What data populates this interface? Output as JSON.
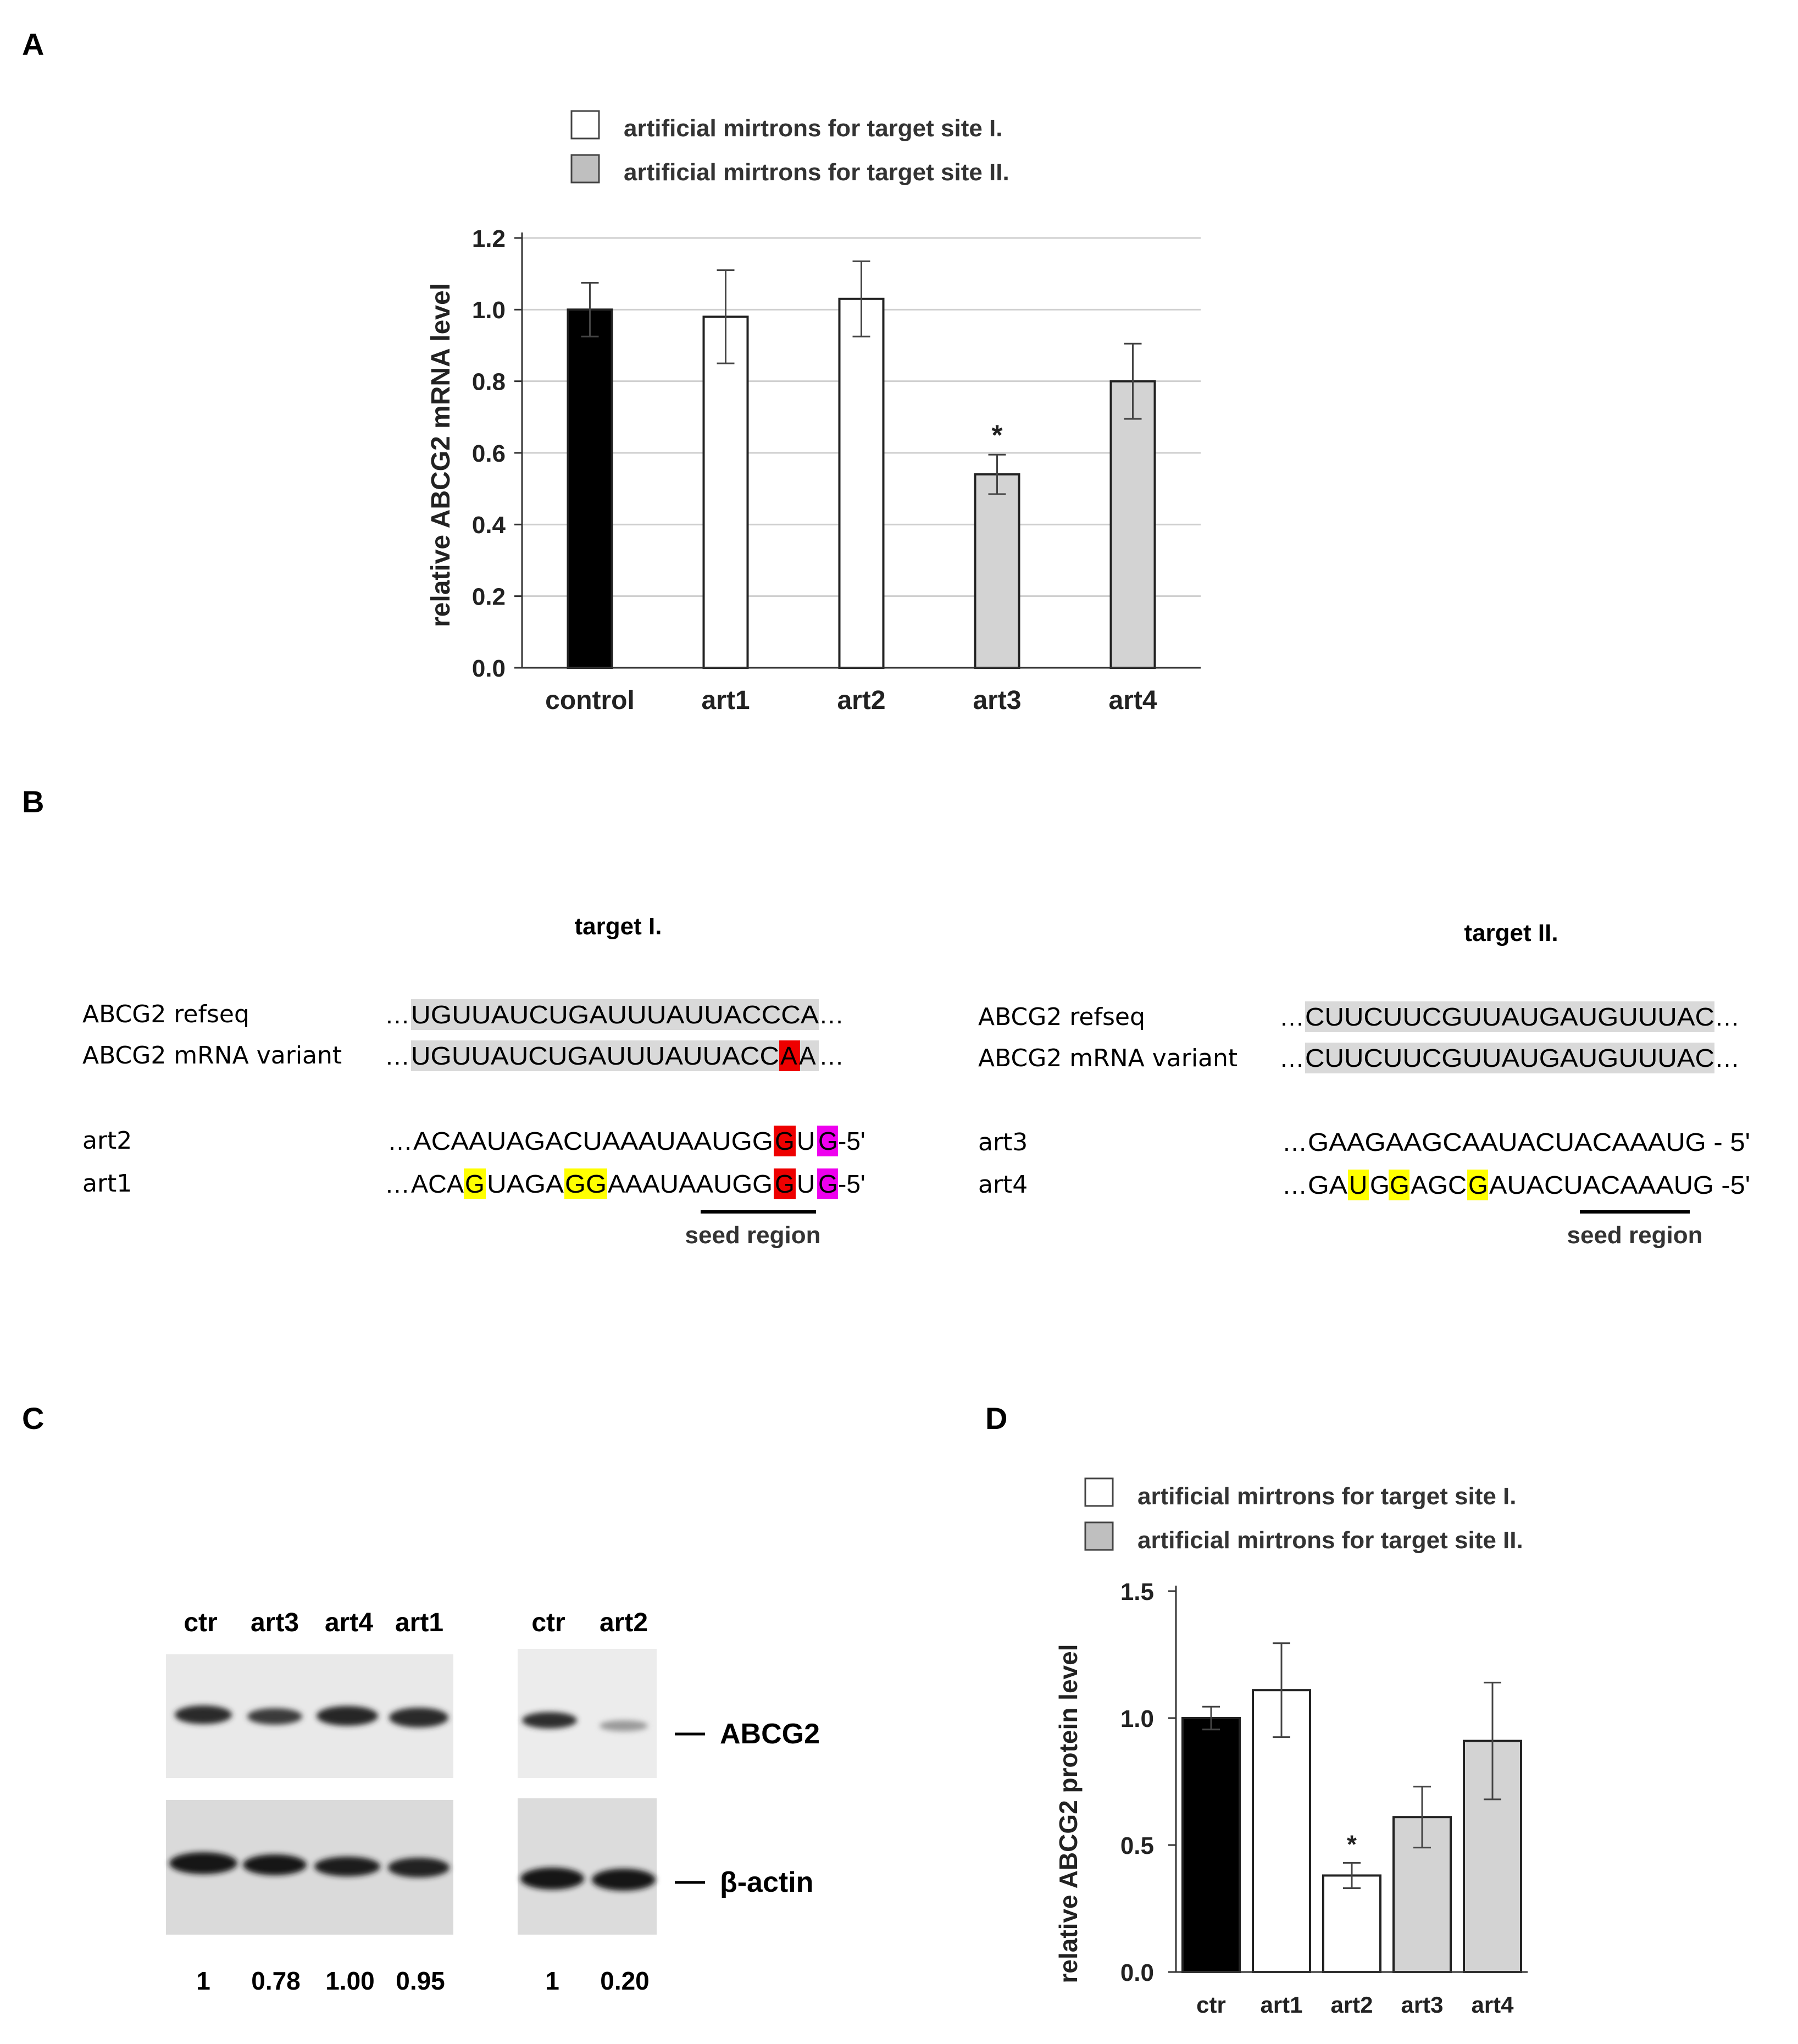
{
  "panels": {
    "a": "A",
    "b": "B",
    "c": "C",
    "d": "D"
  },
  "colors": {
    "control": "#000000",
    "site1": "#ffffff",
    "site2": "#d3d3d3",
    "site2_dark": "#bfbfbf",
    "mismatch_red": "#ee0000",
    "mismatch_magenta": "#ee00ee",
    "mismatch_yellow": "#ffff00",
    "target_shade": "#d9d9d9"
  },
  "chart_data": [
    {
      "id": "A",
      "type": "bar",
      "title": "",
      "xlabel": "",
      "ylabel": "relative ABCG2 mRNA level",
      "categories": [
        "control",
        "art1",
        "art2",
        "art3",
        "art4"
      ],
      "values": [
        1.0,
        0.98,
        1.03,
        0.54,
        0.8
      ],
      "errors": [
        0.075,
        0.13,
        0.105,
        0.055,
        0.105
      ],
      "groups": [
        "control",
        "site1",
        "site1",
        "site2",
        "site2"
      ],
      "ylim": [
        0,
        1.2
      ],
      "yticks": [
        "0.0",
        "0.2",
        "0.4",
        "0.6",
        "0.8",
        "1.0",
        "1.2"
      ],
      "grid": true,
      "annotations": [
        {
          "category": "art3",
          "text": "*"
        }
      ],
      "legend": [
        "artificial mirtrons for target site I.",
        "artificial mirtrons for target site II."
      ],
      "legend_position": "top"
    },
    {
      "id": "D",
      "type": "bar",
      "title": "",
      "xlabel": "",
      "ylabel": "relative ABCG2 protein level",
      "categories": [
        "ctr",
        "art1",
        "art2",
        "art3",
        "art4"
      ],
      "values": [
        1.0,
        1.11,
        0.38,
        0.61,
        0.91
      ],
      "errors": [
        0.045,
        0.185,
        0.05,
        0.12,
        0.23
      ],
      "groups": [
        "control",
        "site1",
        "site1",
        "site2",
        "site2"
      ],
      "ylim": [
        0,
        1.5
      ],
      "yticks": [
        "0.0",
        "0.5",
        "1.0",
        "1.5"
      ],
      "grid": false,
      "annotations": [
        {
          "category": "art2",
          "text": "*"
        }
      ],
      "legend": [
        "artificial mirtrons for target site I.",
        "artificial mirtrons for target site II."
      ],
      "legend_position": "top"
    }
  ],
  "panel_b": {
    "target1": {
      "title": "target I.",
      "refseq_label": "ABCG2 refseq",
      "variant_label": "ABCG2 mRNA variant",
      "refseq": "UGUUAUCUGAUUUAUUACCCA",
      "variant": [
        "UGUUAUCUGAUUUAUUACC",
        "A",
        "A"
      ],
      "art_top_label": "art2",
      "art_bottom_label": "art1",
      "art2_seq": [
        "ACAAUAGACUAAAUAAUGG",
        "G",
        "U",
        "G",
        "-5'"
      ],
      "art1_seq": [
        "ACA",
        "G",
        "UAGA",
        "GG",
        "AAAUAAUGG",
        "G",
        "U",
        "G",
        "-5'"
      ],
      "seed": "seed region"
    },
    "target2": {
      "title": "target II.",
      "refseq_label": "ABCG2 refseq",
      "variant_label": "ABCG2 mRNA variant",
      "refseq": "CUUCUUCGUUAUGAUGUUUAC",
      "variant": "CUUCUUCGUUAUGAUGUUUAC",
      "art_top_label": "art3",
      "art_bottom_label": "art4",
      "art3_seq": "GAAGAAGCAAUACUACAAAUG - 5'",
      "art4_seq": [
        "GA",
        "U",
        "G",
        "G",
        "AGC",
        "G",
        "AUACUACAAAUG -5'"
      ],
      "seed": "seed region"
    },
    "ellipsis": "…"
  },
  "panel_c": {
    "left_lanes": [
      "ctr",
      "art3",
      "art4",
      "art1"
    ],
    "right_lanes": [
      "ctr",
      "art2"
    ],
    "band_top_label": "ABCG2",
    "band_bottom_label": "β-actin",
    "left_values": [
      "1",
      "0.78",
      "1.00",
      "0.95"
    ],
    "right_values": [
      "1",
      "0.20"
    ]
  }
}
